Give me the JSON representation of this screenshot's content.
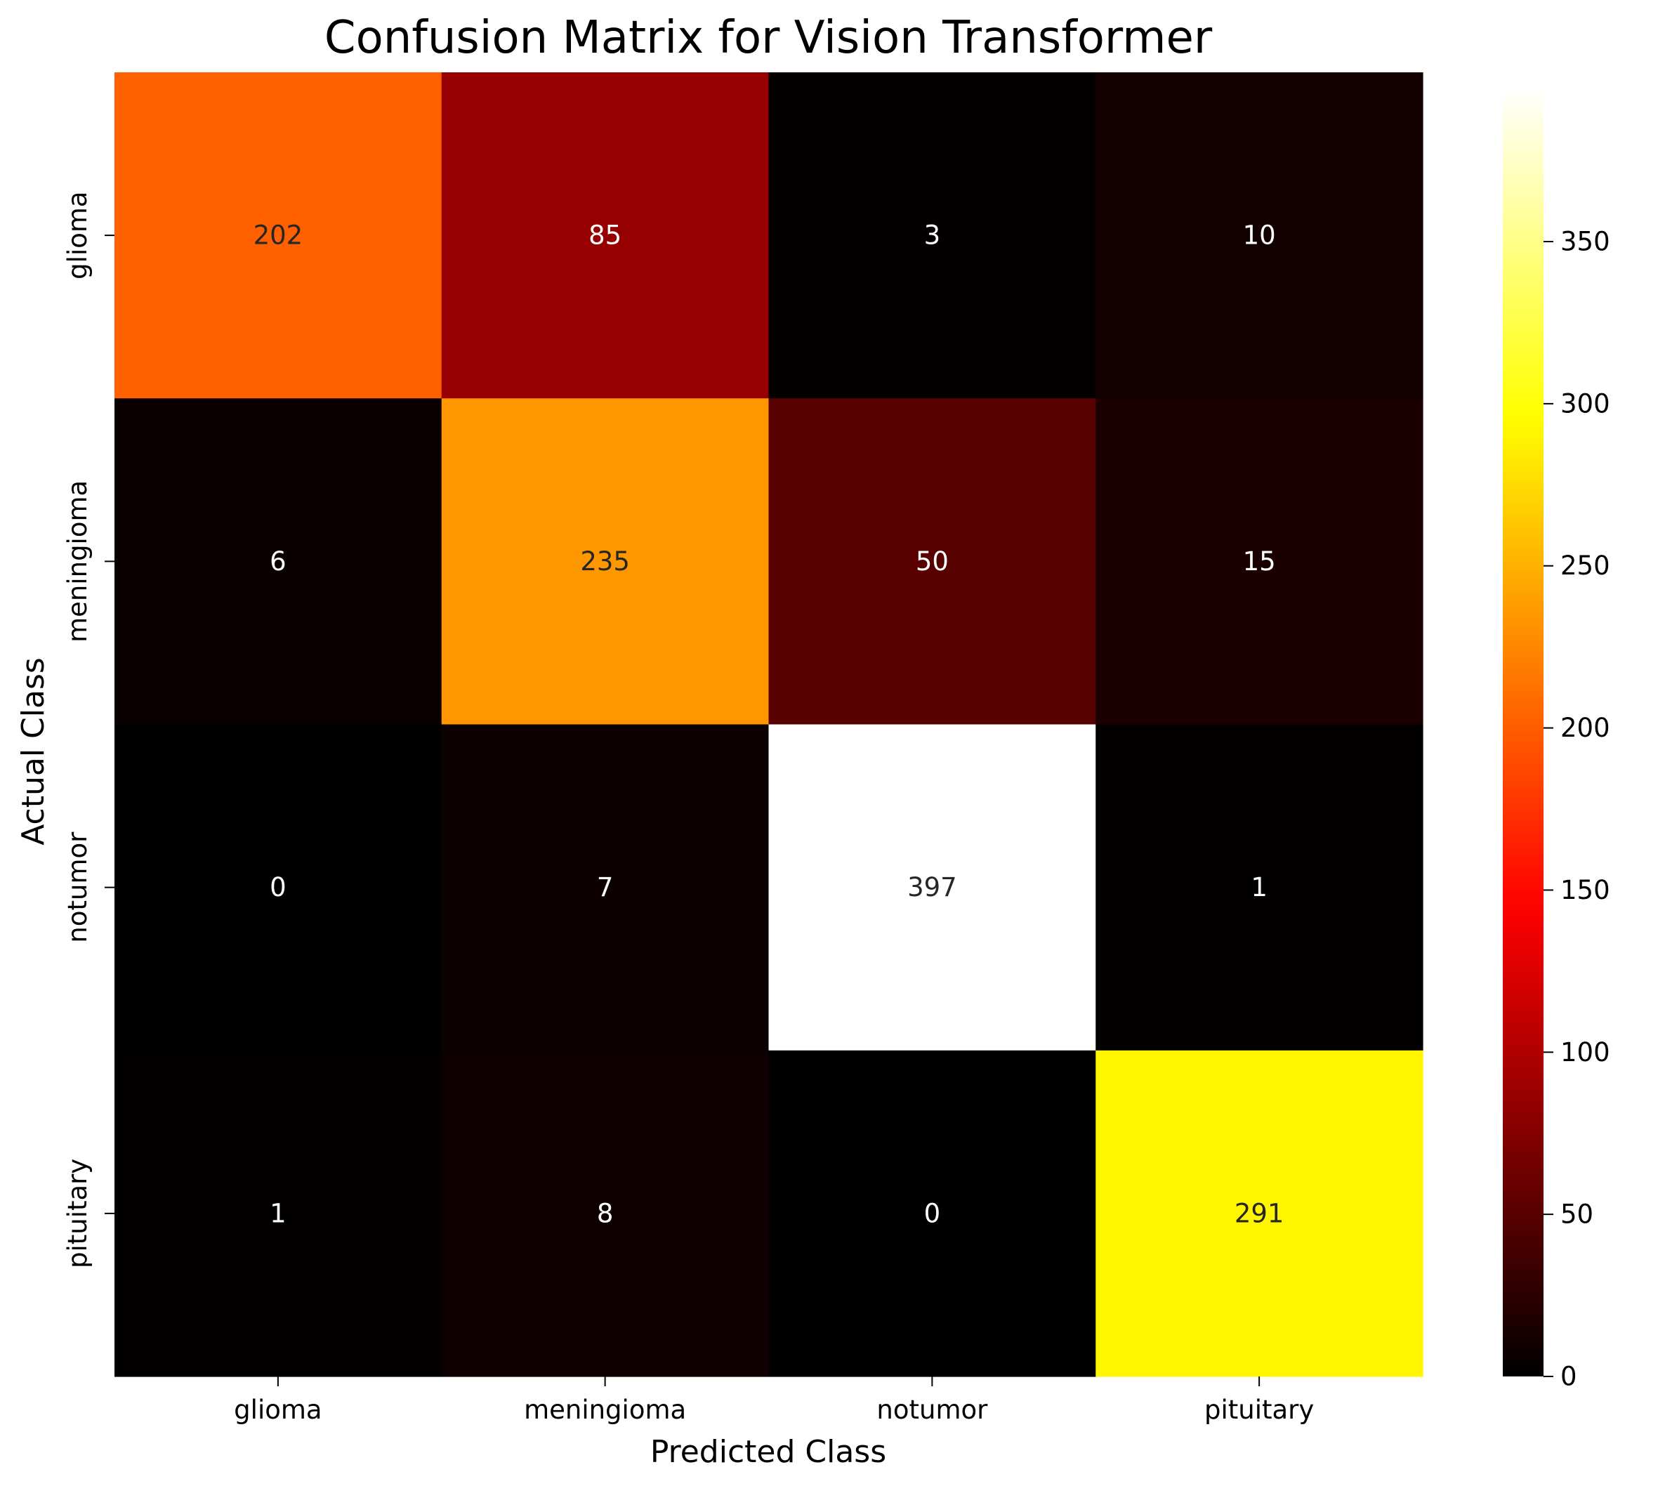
{
  "chart_data": {
    "type": "heatmap",
    "title": "Confusion Matrix for Vision Transformer",
    "xlabel": "Predicted Class",
    "ylabel": "Actual Class",
    "x_categories": [
      "glioma",
      "meningioma",
      "notumor",
      "pituitary"
    ],
    "y_categories": [
      "glioma",
      "meningioma",
      "notumor",
      "pituitary"
    ],
    "values": [
      [
        202,
        85,
        3,
        10
      ],
      [
        6,
        235,
        50,
        15
      ],
      [
        0,
        7,
        397,
        1
      ],
      [
        1,
        8,
        0,
        291
      ]
    ],
    "colormap": "hot",
    "colorbar": {
      "range": [
        0,
        397
      ],
      "ticks": [
        0,
        50,
        100,
        150,
        200,
        250,
        300,
        350
      ]
    },
    "annotation_colors": {
      "on_dark": "#ffffff",
      "on_light": "#262626"
    }
  }
}
